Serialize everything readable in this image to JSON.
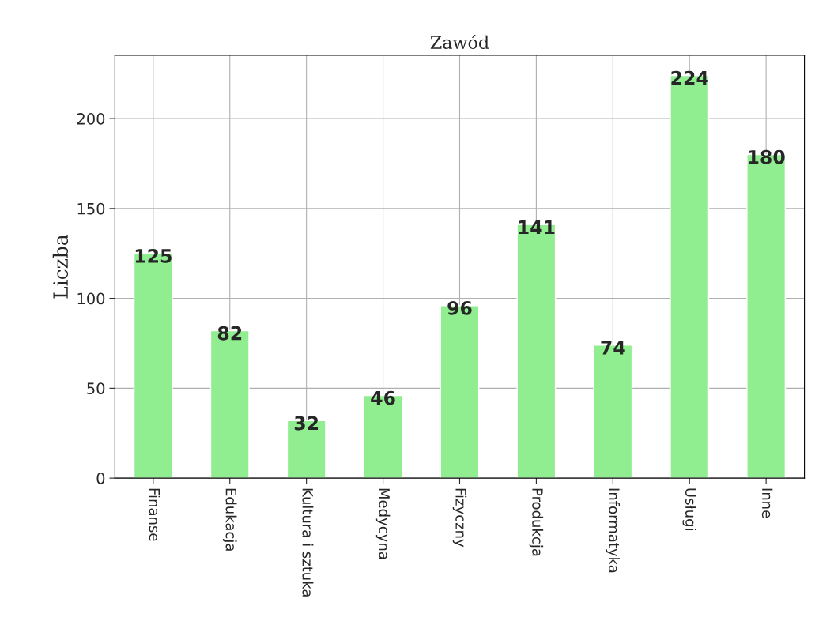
{
  "chart_data": {
    "type": "bar",
    "title": "Zawód",
    "ylabel": "Liczba",
    "categories": [
      "Finanse",
      "Edukacja",
      "Kultura i sztuka",
      "Medycyna",
      "Fizyczny",
      "Produkcja",
      "Informatyka",
      "Usługi",
      "Inne"
    ],
    "values": [
      125,
      82,
      32,
      46,
      96,
      141,
      74,
      224,
      180
    ],
    "color": "#90ee90",
    "ylim": [
      0,
      235.2
    ],
    "yticks": [
      0,
      50,
      100,
      150,
      200
    ],
    "grid": true,
    "data_labels": true
  }
}
